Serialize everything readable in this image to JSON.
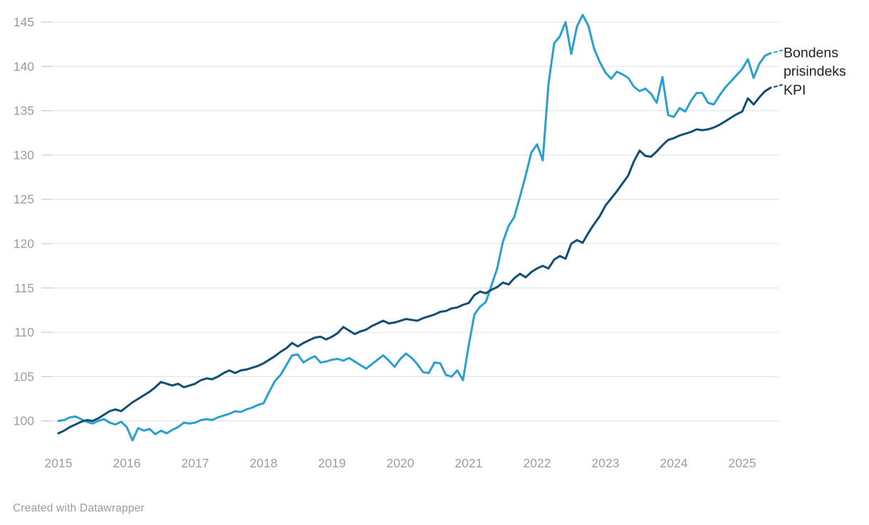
{
  "chart": {
    "title": "",
    "background": "#ffffff",
    "axis_color": "#9d9d9d",
    "gridline_color": "#e6e6e6",
    "tick_color": "#cccccc",
    "label_text_color": "#222222"
  },
  "chart_data": {
    "type": "line",
    "frequency": "monthly",
    "x_start": "2015-01",
    "x_end": "2025-06",
    "x_tick_labels": [
      "2015",
      "2016",
      "2017",
      "2018",
      "2019",
      "2020",
      "2021",
      "2022",
      "2023",
      "2024",
      "2025"
    ],
    "y_ticks": [
      100,
      105,
      110,
      115,
      120,
      125,
      130,
      135,
      140,
      145
    ],
    "ylim": [
      97.5,
      146.5
    ],
    "grid": "horizontal",
    "legend_position": "right-of-line-ends",
    "series": [
      {
        "name": "Bondens prisindeks",
        "color": "#2BA0CF",
        "values": [
          100.0,
          100.1,
          100.4,
          100.5,
          100.2,
          99.9,
          99.7,
          100.0,
          100.2,
          99.8,
          99.6,
          99.9,
          99.3,
          97.8,
          99.2,
          98.9,
          99.1,
          98.5,
          98.9,
          98.6,
          99.0,
          99.3,
          99.8,
          99.7,
          99.8,
          100.1,
          100.2,
          100.1,
          100.4,
          100.6,
          100.8,
          101.1,
          101.0,
          101.3,
          101.5,
          101.8,
          102.0,
          103.3,
          104.5,
          105.2,
          106.3,
          107.4,
          107.5,
          106.6,
          107.0,
          107.3,
          106.6,
          106.7,
          106.9,
          107.0,
          106.8,
          107.1,
          106.7,
          106.3,
          105.9,
          106.4,
          106.9,
          107.4,
          106.8,
          106.1,
          107.0,
          107.6,
          107.1,
          106.4,
          105.5,
          105.4,
          106.6,
          106.5,
          105.2,
          105.0,
          105.7,
          104.6,
          108.5,
          112.0,
          112.9,
          113.4,
          115.3,
          117.2,
          120.2,
          122.0,
          123.0,
          125.3,
          127.7,
          130.3,
          131.2,
          129.4,
          138.0,
          142.6,
          143.4,
          145.0,
          141.4,
          144.5,
          145.8,
          144.6,
          142.0,
          140.5,
          139.3,
          138.6,
          139.4,
          139.1,
          138.7,
          137.7,
          137.2,
          137.5,
          136.9,
          135.9,
          138.8,
          134.5,
          134.3,
          135.3,
          134.9,
          136.1,
          137.0,
          137.0,
          135.9,
          135.7,
          136.7,
          137.6,
          138.3,
          139.0,
          139.7,
          140.8,
          138.7,
          140.3,
          141.2,
          141.5
        ]
      },
      {
        "name": "KPI",
        "color": "#114E76",
        "values": [
          98.6,
          98.9,
          99.3,
          99.6,
          99.9,
          100.1,
          100.0,
          100.3,
          100.7,
          101.1,
          101.3,
          101.1,
          101.6,
          102.1,
          102.5,
          102.9,
          103.3,
          103.8,
          104.4,
          104.2,
          104.0,
          104.2,
          103.8,
          104.0,
          104.2,
          104.6,
          104.8,
          104.7,
          105.0,
          105.4,
          105.7,
          105.4,
          105.7,
          105.8,
          106.0,
          106.2,
          106.5,
          106.9,
          107.3,
          107.8,
          108.2,
          108.8,
          108.4,
          108.8,
          109.1,
          109.4,
          109.5,
          109.2,
          109.5,
          109.9,
          110.6,
          110.2,
          109.8,
          110.1,
          110.3,
          110.7,
          111.0,
          111.3,
          111.0,
          111.1,
          111.3,
          111.5,
          111.4,
          111.3,
          111.6,
          111.8,
          112.0,
          112.3,
          112.4,
          112.7,
          112.8,
          113.1,
          113.3,
          114.2,
          114.6,
          114.4,
          114.8,
          115.1,
          115.6,
          115.4,
          116.1,
          116.6,
          116.2,
          116.8,
          117.2,
          117.5,
          117.2,
          118.2,
          118.6,
          118.3,
          120.0,
          120.4,
          120.1,
          121.2,
          122.2,
          123.1,
          124.3,
          125.1,
          125.9,
          126.8,
          127.7,
          129.3,
          130.5,
          129.9,
          129.8,
          130.4,
          131.1,
          131.7,
          131.9,
          132.2,
          132.4,
          132.6,
          132.9,
          132.8,
          132.9,
          133.1,
          133.4,
          133.8,
          134.2,
          134.6,
          134.9,
          136.4,
          135.7,
          136.5,
          137.2,
          137.6
        ]
      }
    ]
  },
  "footer": {
    "credit": "Created with Datawrapper"
  }
}
